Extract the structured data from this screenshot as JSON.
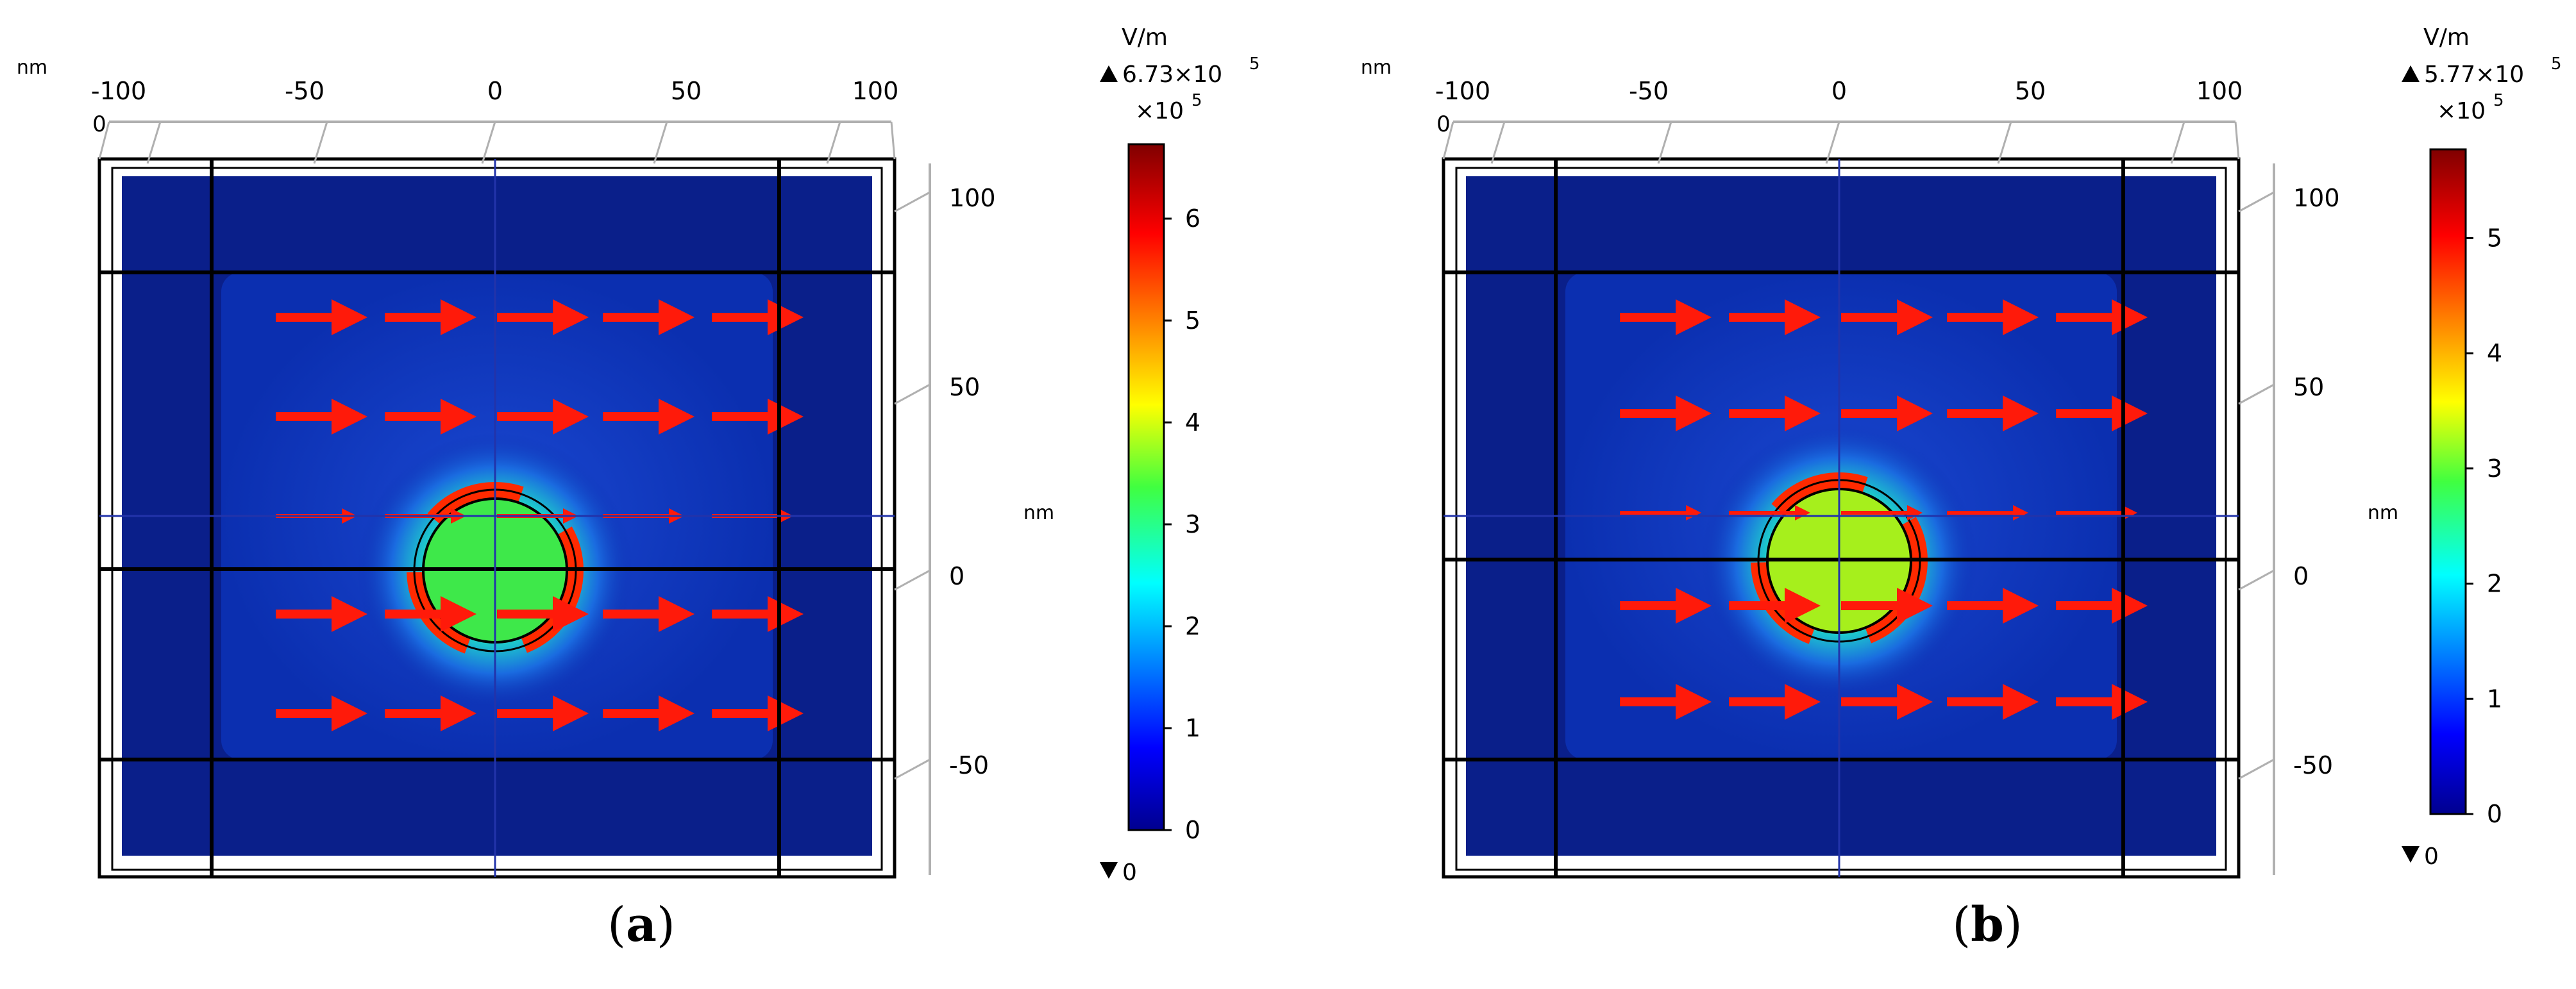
{
  "panels": [
    {
      "id": "a",
      "caption_letter": "a",
      "unit_label": "nm",
      "colorbar": {
        "unit": "V/m",
        "max_label": "6.73×10",
        "max_exp": "5",
        "multiplier": "×10",
        "multiplier_exp": "5",
        "min_label": "0",
        "ticks": [
          "0",
          "1",
          "2",
          "3",
          "4",
          "5",
          "6"
        ],
        "max_value": 6.73
      },
      "x_ticks": [
        "-100",
        "-50",
        "0",
        "50",
        "100"
      ],
      "z_tick": "0",
      "y_ticks": [
        "100",
        "50",
        "0",
        "-50"
      ],
      "particle_color": "#3ee84a"
    },
    {
      "id": "b",
      "caption_letter": "b",
      "unit_label": "nm",
      "colorbar": {
        "unit": "V/m",
        "max_label": "5.77×10",
        "max_exp": "5",
        "multiplier": "×10",
        "multiplier_exp": "5",
        "min_label": "0",
        "ticks": [
          "0",
          "1",
          "2",
          "3",
          "4",
          "5"
        ],
        "max_value": 5.77
      },
      "x_ticks": [
        "-100",
        "-50",
        "0",
        "50",
        "100"
      ],
      "z_tick": "0",
      "y_ticks": [
        "100",
        "50",
        "0",
        "-50"
      ],
      "particle_color": "#a6ef1c"
    }
  ],
  "colors": {
    "background_field": "#0b2fb0",
    "outer_field": "#0a1f8a",
    "arrow": "#ff1a0a",
    "frame": "#000000"
  }
}
